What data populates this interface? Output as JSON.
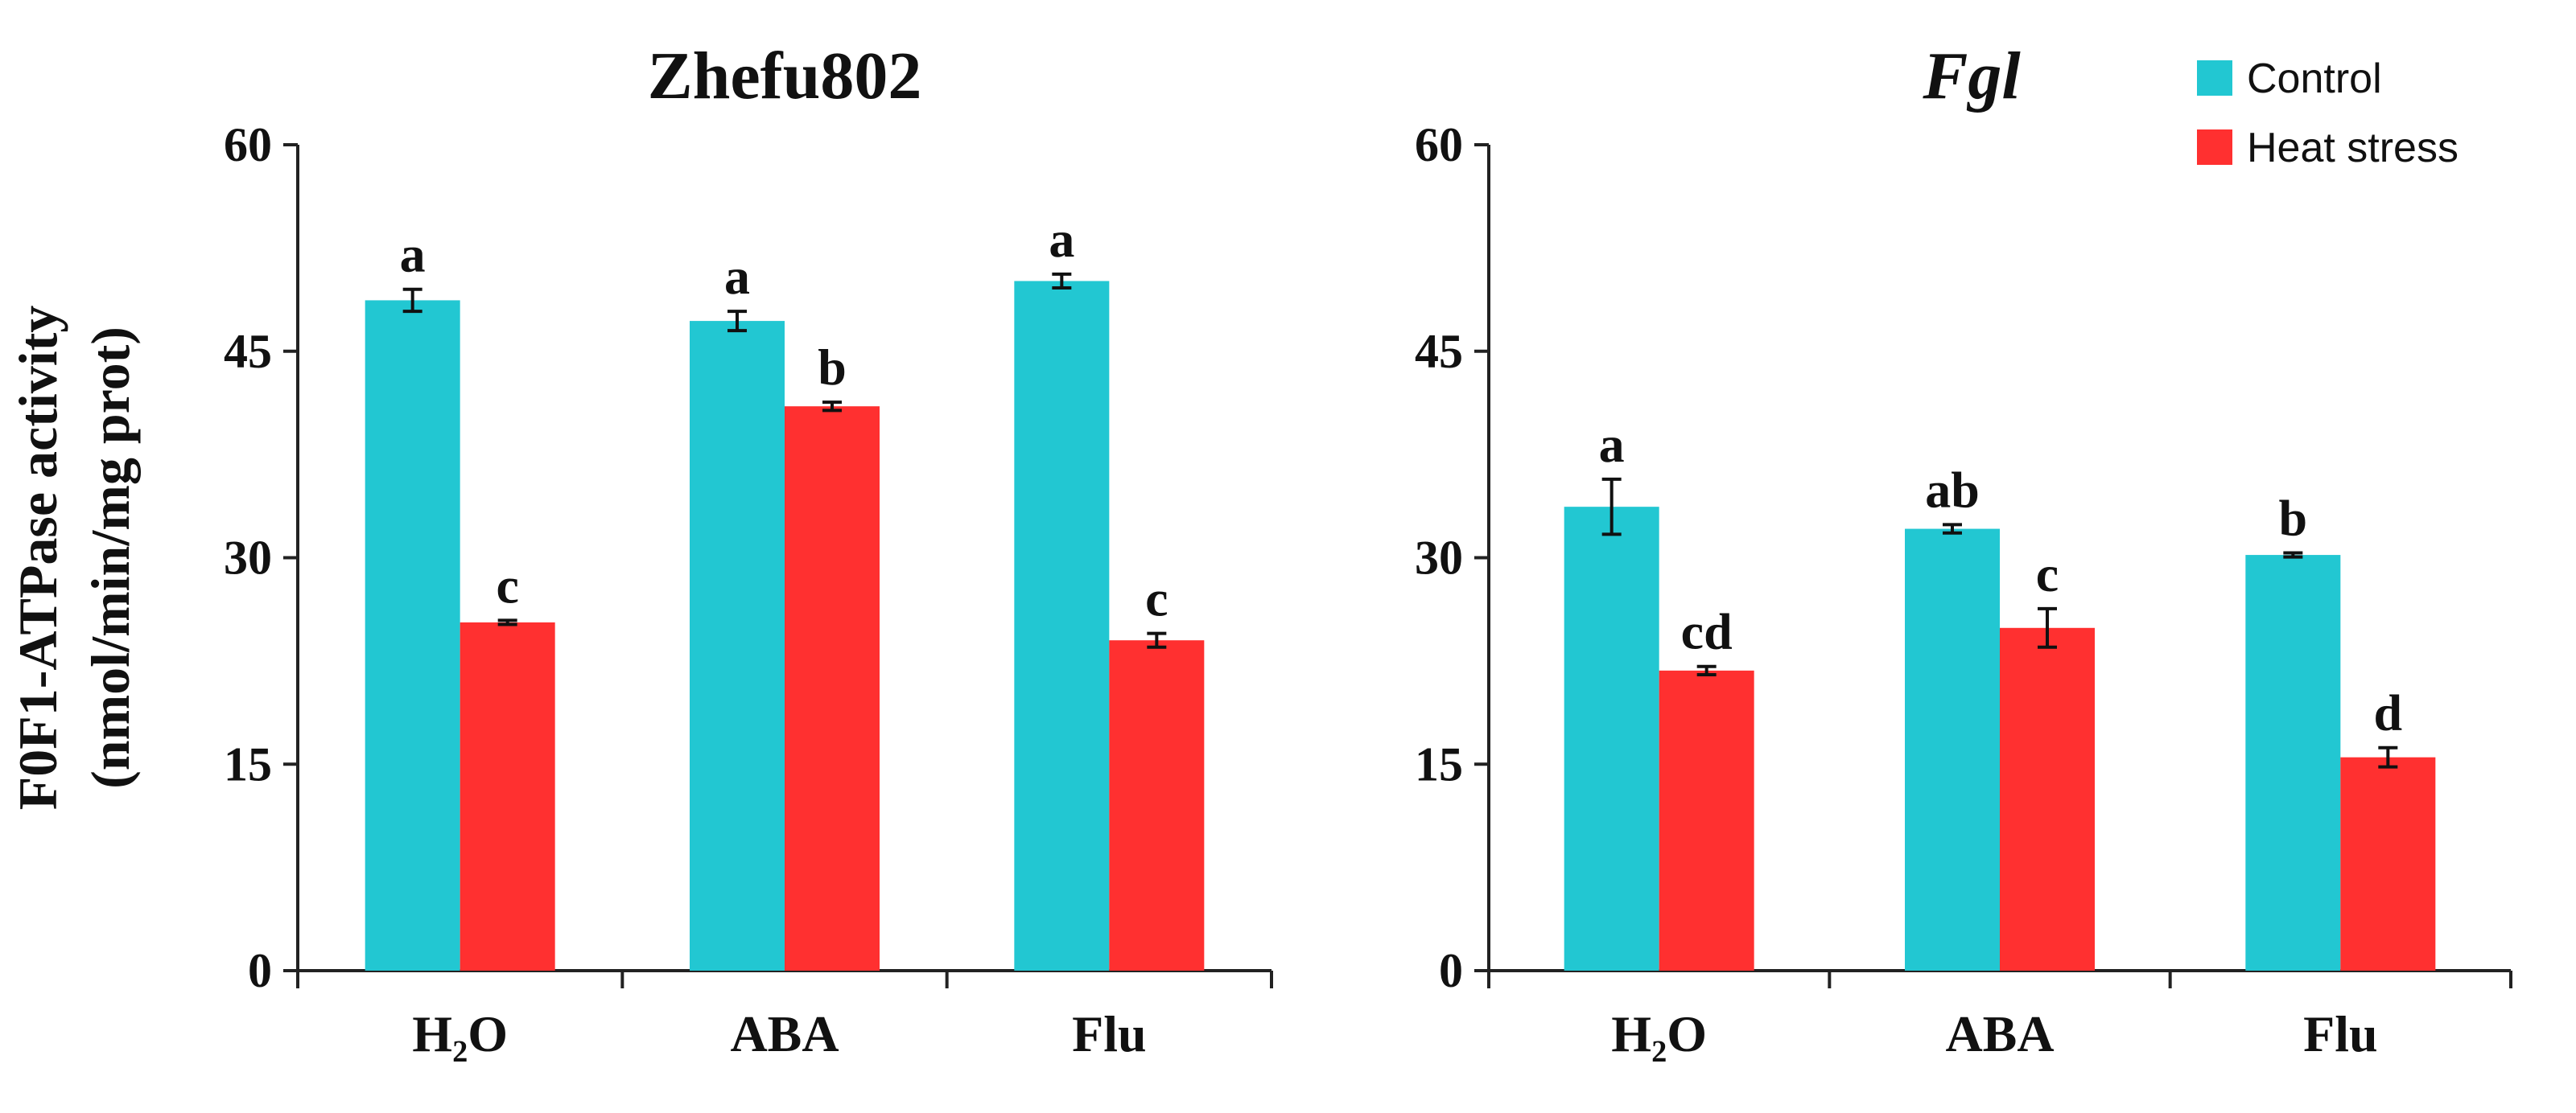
{
  "chart_data": [
    {
      "type": "bar",
      "title": "Zhefu802",
      "title_style": "bold",
      "ylabel": [
        "F0F1-ATPase activity",
        "(nmol/min/mg prot)"
      ],
      "ylim": [
        0,
        60
      ],
      "yticks": [
        0,
        15,
        30,
        45,
        60
      ],
      "categories": [
        "H₂O",
        "ABA",
        "Flu"
      ],
      "series": [
        {
          "name": "Control",
          "color": "#22C7D2",
          "values": [
            48.7,
            47.2,
            50.1
          ],
          "errors": [
            0.8,
            0.7,
            0.5
          ],
          "labels": [
            "a",
            "a",
            "a"
          ]
        },
        {
          "name": "Heat stress",
          "color": "#FF3030",
          "values": [
            25.3,
            41.0,
            24.0
          ],
          "errors": [
            0.15,
            0.3,
            0.5
          ],
          "labels": [
            "c",
            "b",
            "c"
          ]
        }
      ]
    },
    {
      "type": "bar",
      "title": "Fgl",
      "title_style": "bold-italic",
      "ylim": [
        0,
        60
      ],
      "yticks": [
        0,
        15,
        30,
        45,
        60
      ],
      "categories": [
        "H₂O",
        "ABA",
        "Flu"
      ],
      "series": [
        {
          "name": "Control",
          "color": "#22C7D2",
          "values": [
            33.7,
            32.1,
            30.2
          ],
          "errors": [
            2.0,
            0.3,
            0.15
          ],
          "labels": [
            "a",
            "ab",
            "b"
          ]
        },
        {
          "name": "Heat stress",
          "color": "#FF3030",
          "values": [
            21.8,
            24.9,
            15.5
          ],
          "errors": [
            0.3,
            1.4,
            0.7
          ],
          "labels": [
            "cd",
            "c",
            "d"
          ]
        }
      ]
    }
  ],
  "legend": [
    {
      "name": "Control",
      "color": "#22C7D2"
    },
    {
      "name": "Heat stress",
      "color": "#FF3030"
    }
  ]
}
